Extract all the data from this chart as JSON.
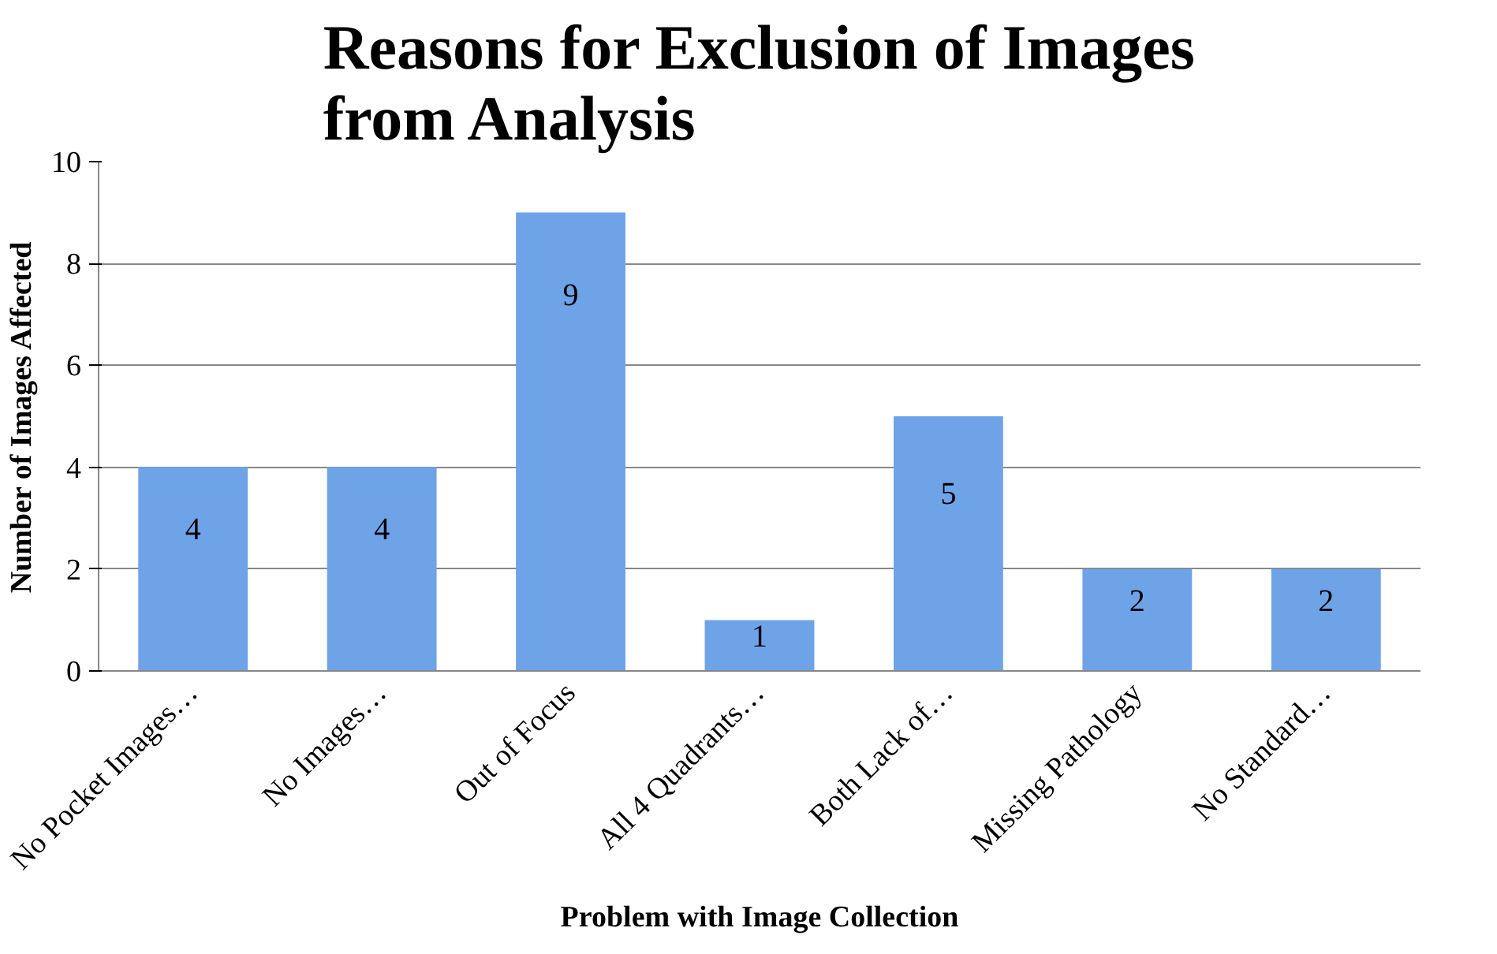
{
  "chart_data": {
    "type": "bar",
    "title": "Reasons for Exclusion of Images\nfrom Analysis",
    "xlabel": "Problem with Image Collection",
    "ylabel": "Number of Images Affected",
    "categories": [
      "No Pocket Images…",
      "No Images…",
      "Out of Focus",
      "All 4 Quadrants…",
      "Both Lack of…",
      "Missing Pathology",
      "No Standard…"
    ],
    "values": [
      4,
      4,
      9,
      1,
      5,
      2,
      2
    ],
    "color": "#6fa3e8",
    "ylim": [
      0,
      10
    ],
    "yticks": [
      0,
      2,
      4,
      6,
      8,
      10
    ],
    "grid": "y",
    "data_labels": true
  }
}
